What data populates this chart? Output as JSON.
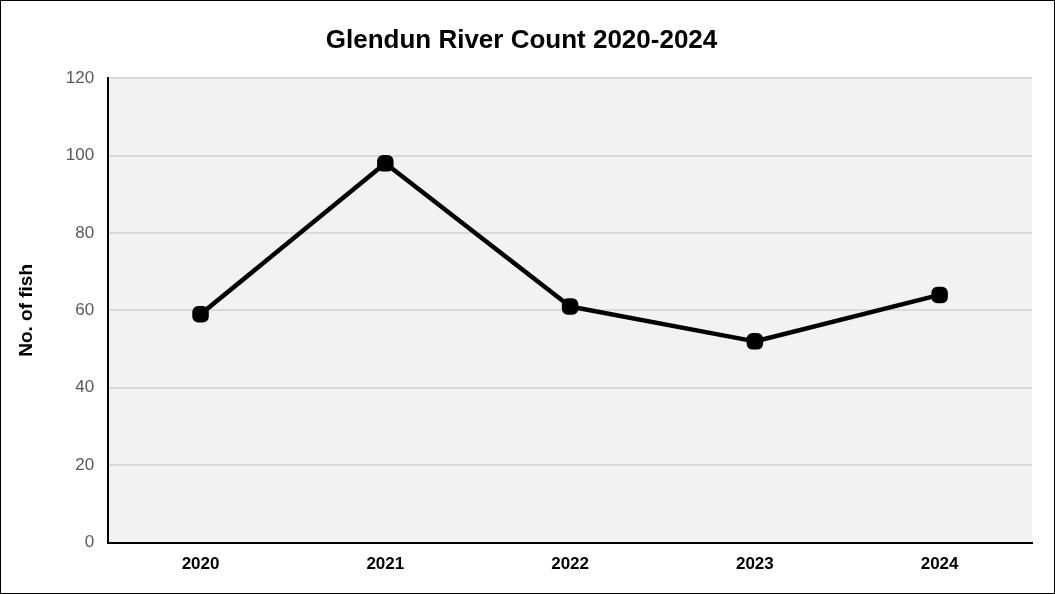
{
  "chart_data": {
    "type": "line",
    "title": "Glendun River Count 2020-2024",
    "ylabel": "No. of fish",
    "categories": [
      "2020",
      "2021",
      "2022",
      "2023",
      "2024"
    ],
    "series": [
      {
        "color": "#000000",
        "values": [
          59,
          98,
          61,
          52,
          64
        ]
      }
    ],
    "ylim": [
      0,
      120
    ],
    "yticks": [
      0,
      20,
      40,
      60,
      80,
      100,
      120
    ],
    "grid": "y",
    "legend": false,
    "marker": "square",
    "line_style": "solid"
  }
}
